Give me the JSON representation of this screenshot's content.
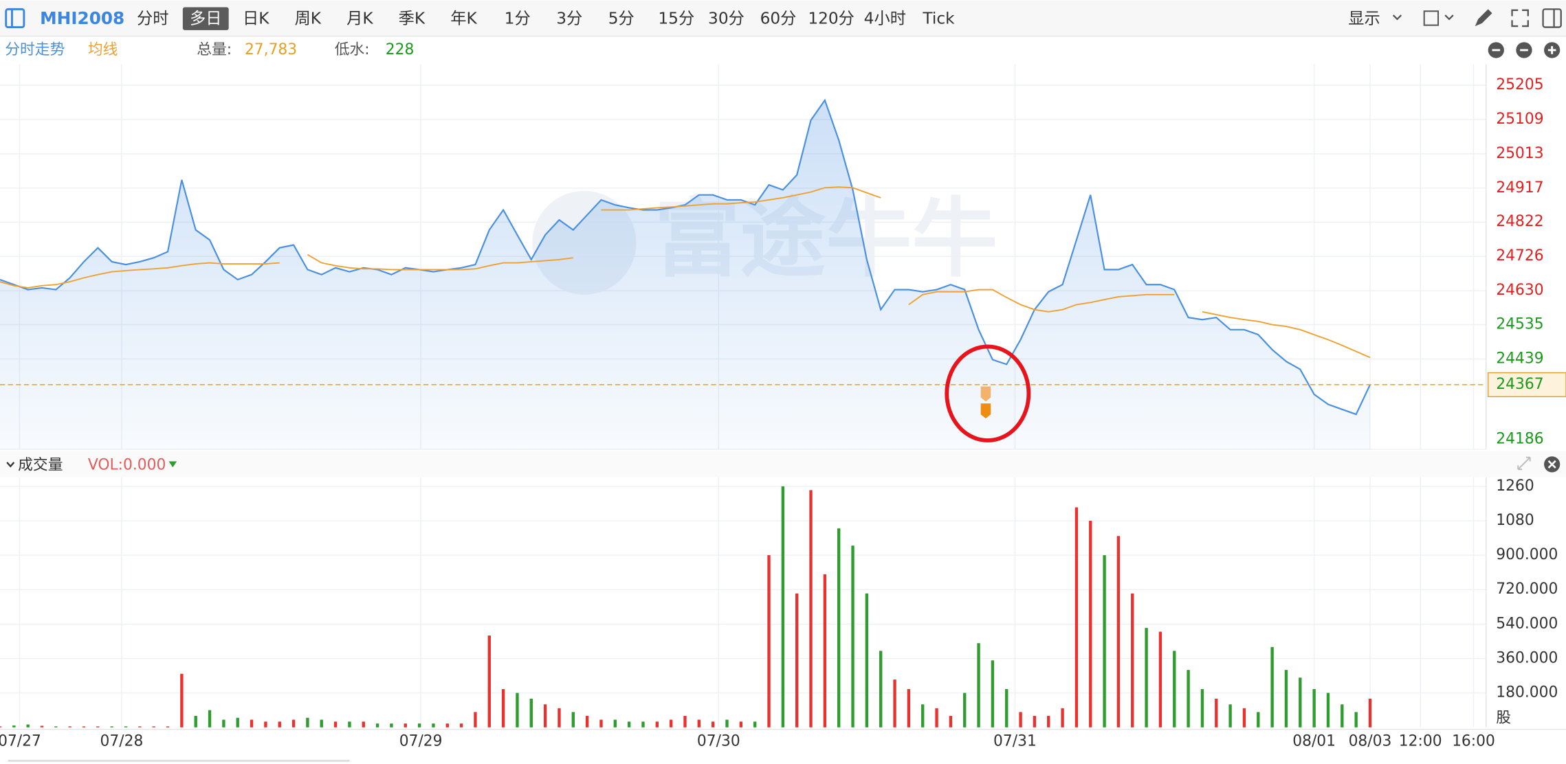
{
  "toolbar": {
    "symbol": "MHI2008",
    "tabs": [
      "分时",
      "多日",
      "日K",
      "周K",
      "月K",
      "季K",
      "年K",
      "1分",
      "3分",
      "5分",
      "15分",
      "30分",
      "60分",
      "120分",
      "4小时",
      "Tick"
    ],
    "selected_index": 1,
    "display": "显示"
  },
  "info_bar": {
    "volume_label": "总量:",
    "volume_value": "27,783",
    "discount_label": "低水:",
    "discount_value": "228"
  },
  "watermark": "富途牛牛",
  "chart_data": [
    {
      "type": "line",
      "x": [
        0,
        1,
        2,
        3,
        4,
        5,
        6,
        7,
        8,
        9,
        10,
        11,
        12,
        13,
        14,
        15,
        16,
        17,
        18,
        19,
        20,
        21,
        22,
        23,
        24,
        25,
        26,
        27,
        28,
        29,
        30,
        31,
        32,
        33,
        34,
        35,
        36,
        37,
        38,
        39,
        40,
        41,
        42,
        43,
        44,
        45,
        46,
        47,
        48,
        49,
        50,
        51,
        52,
        53,
        54,
        55,
        56,
        57,
        58,
        59,
        60,
        61,
        62,
        63,
        64,
        65,
        66,
        67,
        68,
        69,
        70,
        71,
        72,
        73,
        74,
        75,
        76,
        77,
        78,
        79,
        80,
        81,
        82,
        83,
        84,
        85,
        86,
        87,
        88,
        89,
        90,
        91,
        92,
        93,
        94,
        95,
        96,
        97,
        98
      ],
      "series": [
        {
          "name": "分时走势",
          "color": "#4a90e2",
          "values": [
            24661,
            24647,
            24633,
            24638,
            24633,
            24666,
            24711,
            24750,
            24711,
            24703,
            24711,
            24722,
            24739,
            24940,
            24800,
            24772,
            24689,
            24661,
            24675,
            24711,
            24750,
            24758,
            24689,
            24675,
            24694,
            24683,
            24694,
            24689,
            24675,
            24694,
            24689,
            24683,
            24689,
            24694,
            24703,
            24800,
            24856,
            24786,
            24717,
            24786,
            24828,
            24800,
            24842,
            24884,
            24870,
            24862,
            24856,
            24856,
            24862,
            24870,
            24898,
            24898,
            24884,
            24884,
            24870,
            24926,
            24912,
            24954,
            25107,
            25163,
            25051,
            24912,
            24717,
            24577,
            24633,
            24633,
            24627,
            24633,
            24647,
            24633,
            24521,
            24437,
            24424,
            24493,
            24577,
            24627,
            24647,
            24772,
            24898,
            24689,
            24689,
            24703,
            24647,
            24647,
            24633,
            24555,
            24549,
            24555,
            24521,
            24521,
            24507,
            24465,
            24432,
            24410,
            24340,
            24312,
            24298,
            24284,
            24367
          ]
        },
        {
          "name": "均线",
          "color": "#f0a030",
          "values": [
            24655,
            24644,
            24638,
            24644,
            24647,
            24655,
            24666,
            24675,
            24683,
            24686,
            24689,
            24691,
            24694,
            24700,
            24705,
            24708,
            24705,
            24705,
            24705,
            24705,
            24708,
            null,
            24731,
            24708,
            24700,
            24694,
            24691,
            24691,
            24689,
            24689,
            24689,
            24689,
            24689,
            24689,
            24691,
            24700,
            24708,
            24708,
            24711,
            24714,
            24717,
            24722,
            null,
            24856,
            24856,
            24856,
            24859,
            24862,
            24864,
            24867,
            24870,
            24873,
            24873,
            24876,
            24878,
            24884,
            24890,
            24898,
            24906,
            24918,
            24920,
            24918,
            24904,
            24890,
            null,
            24591,
            24619,
            24627,
            24627,
            24627,
            24633,
            24633,
            24611,
            24591,
            24577,
            24571,
            24577,
            24591,
            24597,
            24605,
            24613,
            24616,
            24619,
            24619,
            24619,
            null,
            24571,
            24563,
            24555,
            24549,
            24544,
            24535,
            24530,
            24521,
            24507,
            24493,
            24477,
            24460,
            24443
          ]
        }
      ],
      "xlim": [
        0,
        106.3
      ],
      "ylim": [
        24186,
        25264
      ],
      "yticks": [
        25205,
        25109,
        25013,
        24917,
        24822,
        24726,
        24630,
        24535,
        24439,
        24186
      ],
      "ytick_colors": [
        "#e02020",
        "#e02020",
        "#e02020",
        "#e02020",
        "#e02020",
        "#e02020",
        "#e02020",
        "#1a9a1a",
        "#1a9a1a",
        "#1a9a1a"
      ],
      "last_price": 24367,
      "last_price_color": "#1a9a1a",
      "last_price_line_color": "#e0a030",
      "grid": true
    },
    {
      "type": "bar",
      "title": "成交量",
      "indicator": "VOL:0.000",
      "x": [
        0,
        1,
        2,
        3,
        4,
        5,
        6,
        7,
        8,
        9,
        10,
        11,
        12,
        13,
        14,
        15,
        16,
        17,
        18,
        19,
        20,
        21,
        22,
        23,
        24,
        25,
        26,
        27,
        28,
        29,
        30,
        31,
        32,
        33,
        34,
        35,
        36,
        37,
        38,
        39,
        40,
        41,
        42,
        43,
        44,
        45,
        46,
        47,
        48,
        49,
        50,
        51,
        52,
        53,
        54,
        55,
        56,
        57,
        58,
        59,
        60,
        61,
        62,
        63,
        64,
        65,
        66,
        67,
        68,
        69,
        70,
        71,
        72,
        73,
        74,
        75,
        76,
        77,
        78,
        79,
        80,
        81,
        82,
        83,
        84,
        85,
        86,
        87,
        88,
        89,
        90,
        91,
        92,
        93,
        94,
        95,
        96,
        97,
        98
      ],
      "values": [
        5,
        10,
        15,
        8,
        5,
        5,
        5,
        5,
        5,
        5,
        5,
        5,
        5,
        280,
        60,
        90,
        40,
        50,
        40,
        30,
        30,
        40,
        50,
        40,
        30,
        30,
        30,
        20,
        20,
        20,
        20,
        20,
        20,
        20,
        80,
        480,
        200,
        180,
        150,
        120,
        100,
        80,
        60,
        40,
        40,
        30,
        30,
        30,
        40,
        60,
        40,
        30,
        40,
        30,
        30,
        900,
        1260,
        700,
        1240,
        800,
        1040,
        950,
        700,
        400,
        250,
        200,
        120,
        100,
        60,
        180,
        440,
        350,
        200,
        80,
        60,
        60,
        100,
        1150,
        1080,
        900,
        1000,
        700,
        520,
        500,
        400,
        300,
        200,
        150,
        120,
        100,
        80,
        420,
        300,
        260,
        200,
        180,
        120,
        80,
        150
      ],
      "up_color": "#e8322f",
      "down_color": "#2e9c2e",
      "xlim": [
        0,
        106.3
      ],
      "ylim": [
        0,
        1307
      ],
      "yticks": [
        1260,
        1080,
        {
          "value": 900,
          "label": "900.000"
        },
        {
          "value": 720,
          "label": "720.000"
        },
        {
          "value": 540,
          "label": "540.000"
        },
        {
          "value": 360,
          "label": "360.000"
        },
        {
          "value": 180,
          "label": "180.000"
        }
      ],
      "unit": "股",
      "xticks": [
        {
          "value": 1.4,
          "label": "07/27"
        },
        {
          "value": 8.7,
          "label": "07/28"
        },
        {
          "value": 30.1,
          "label": "07/29"
        },
        {
          "value": 51.4,
          "label": "07/30"
        },
        {
          "value": 72.6,
          "label": "07/31"
        },
        {
          "value": 94,
          "label": "08/01"
        },
        {
          "value": 98,
          "label": "08/03"
        },
        {
          "value": 101.6,
          "label": "12:00"
        },
        {
          "value": 105.4,
          "label": "16:00"
        }
      ],
      "grid": true
    }
  ]
}
